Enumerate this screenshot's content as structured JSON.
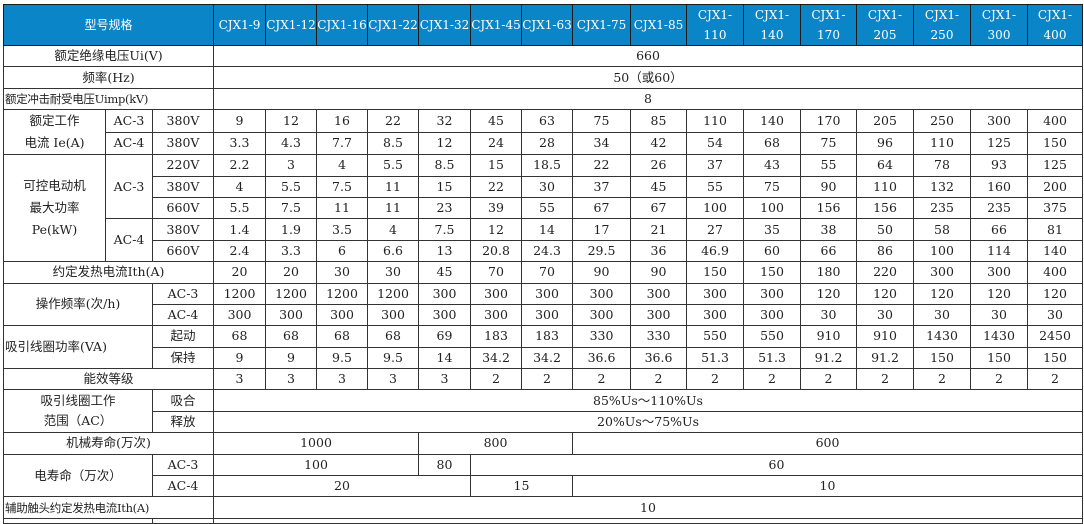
{
  "header": {
    "title": "型号规格",
    "models": [
      "CJX1-9",
      "CJX1-12",
      "CJX1-16",
      "CJX1-22",
      "CJX1-32",
      "CJX1-45",
      "CJX1-63",
      "CJX1-75",
      "CJX1-85",
      "CJX1-110",
      "CJX1-140",
      "CJX1-170",
      "CJX1-205",
      "CJX1-250",
      "CJX1-300",
      "CJX1-400"
    ]
  },
  "insulation_voltage": {
    "label": "额定绝缘电压Ui(V)",
    "value": "660"
  },
  "frequency": {
    "label": "频率(Hz)",
    "value": "50（或60）"
  },
  "impulse_voltage": {
    "label": "额定冲击耐受电压Uimp(kV)",
    "value": "8"
  },
  "rated_current": {
    "label": "额定工作\n电流 Ie(A)",
    "rows": [
      {
        "category": "AC-3",
        "voltage": "380V",
        "values": [
          "9",
          "12",
          "16",
          "22",
          "32",
          "45",
          "63",
          "75",
          "85",
          "110",
          "140",
          "170",
          "205",
          "250",
          "300",
          "400"
        ]
      },
      {
        "category": "AC-4",
        "voltage": "380V",
        "values": [
          "3.3",
          "4.3",
          "7.7",
          "8.5",
          "12",
          "24",
          "28",
          "34",
          "42",
          "54",
          "68",
          "75",
          "96",
          "110",
          "125",
          "150"
        ]
      }
    ]
  },
  "motor_power": {
    "label": "可控电动机\n最大功率\nPe(kW)",
    "ac3": {
      "category": "AC-3",
      "rows": [
        {
          "voltage": "220V",
          "values": [
            "2.2",
            "3",
            "4",
            "5.5",
            "8.5",
            "15",
            "18.5",
            "22",
            "26",
            "37",
            "43",
            "55",
            "64",
            "78",
            "93",
            "125"
          ]
        },
        {
          "voltage": "380V",
          "values": [
            "4",
            "5.5",
            "7.5",
            "11",
            "15",
            "22",
            "30",
            "37",
            "45",
            "55",
            "75",
            "90",
            "110",
            "132",
            "160",
            "200"
          ]
        },
        {
          "voltage": "660V",
          "values": [
            "5.5",
            "7.5",
            "11",
            "11",
            "23",
            "39",
            "55",
            "67",
            "67",
            "100",
            "100",
            "156",
            "156",
            "235",
            "235",
            "375"
          ]
        }
      ]
    },
    "ac4": {
      "category": "AC-4",
      "rows": [
        {
          "voltage": "380V",
          "values": [
            "1.4",
            "1.9",
            "3.5",
            "4",
            "7.5",
            "12",
            "14",
            "17",
            "21",
            "27",
            "35",
            "38",
            "50",
            "58",
            "66",
            "81"
          ]
        },
        {
          "voltage": "660V",
          "values": [
            "2.4",
            "3.3",
            "6",
            "6.6",
            "13",
            "20.8",
            "24.3",
            "29.5",
            "36",
            "46.9",
            "60",
            "66",
            "86",
            "100",
            "114",
            "140"
          ]
        }
      ]
    }
  },
  "thermal_current": {
    "label": "约定发热电流Ith(A)",
    "values": [
      "20",
      "20",
      "30",
      "30",
      "45",
      "70",
      "70",
      "90",
      "90",
      "150",
      "150",
      "180",
      "220",
      "300",
      "300",
      "400"
    ]
  },
  "operating_frequency": {
    "label": "操作频率(次/h)",
    "rows": [
      {
        "category": "AC-3",
        "values": [
          "1200",
          "1200",
          "1200",
          "1200",
          "300",
          "300",
          "300",
          "300",
          "300",
          "300",
          "300",
          "120",
          "120",
          "120",
          "120",
          "120"
        ]
      },
      {
        "category": "AC-4",
        "values": [
          "300",
          "300",
          "300",
          "300",
          "300",
          "300",
          "300",
          "300",
          "300",
          "300",
          "300",
          "30",
          "30",
          "30",
          "30",
          "30"
        ]
      }
    ]
  },
  "coil_power": {
    "label": "吸引线圈功率(VA)",
    "rows": [
      {
        "category": "起动",
        "values": [
          "68",
          "68",
          "68",
          "68",
          "69",
          "183",
          "183",
          "330",
          "330",
          "550",
          "550",
          "910",
          "910",
          "1430",
          "1430",
          "2450"
        ]
      },
      {
        "category": "保持",
        "values": [
          "9",
          "9",
          "9.5",
          "9.5",
          "14",
          "34.2",
          "34.2",
          "36.6",
          "36.6",
          "51.3",
          "51.3",
          "91.2",
          "91.2",
          "150",
          "150",
          "150"
        ]
      }
    ]
  },
  "efficiency_class": {
    "label": "能效等级",
    "values": [
      "3",
      "3",
      "3",
      "3",
      "3",
      "2",
      "2",
      "2",
      "2",
      "2",
      "2",
      "2",
      "2",
      "2",
      "2",
      "2"
    ]
  },
  "coil_range": {
    "label": "吸引线圈工作\n范围（AC）",
    "rows": [
      {
        "category": "吸合",
        "value": "85%Us～110%Us"
      },
      {
        "category": "释放",
        "value": "20%Us～75%Us"
      }
    ]
  },
  "mechanical_life": {
    "label": "机械寿命(万次)",
    "values": [
      "1000",
      "800",
      "600"
    ]
  },
  "electrical_life": {
    "label": "电寿命（万次）",
    "rows": [
      {
        "category": "AC-3",
        "values": [
          "100",
          "80",
          "60"
        ]
      },
      {
        "category": "AC-4",
        "values": [
          "20",
          "15",
          "10"
        ]
      }
    ]
  },
  "aux_thermal_current": {
    "label": "辅助触头约定发热电流Ith(A)",
    "value": "10"
  }
}
